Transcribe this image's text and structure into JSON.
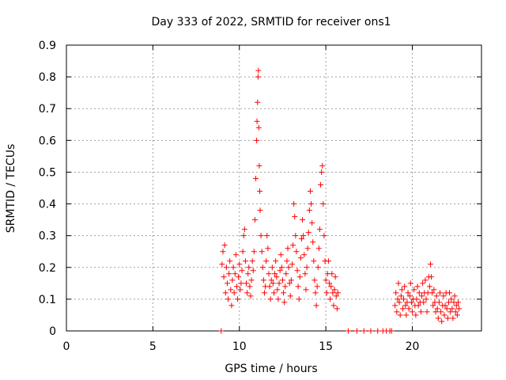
{
  "chart_data": {
    "type": "scatter",
    "title": "Day 333 of 2022, SRMTID for receiver ons1",
    "xlabel": "GPS time / hours",
    "ylabel": "SRMTID / TECUs",
    "xlim": [
      0,
      24
    ],
    "ylim": [
      0,
      0.9
    ],
    "x_ticks": [
      0,
      5,
      10,
      15,
      20
    ],
    "x_tick_labels": [
      "0",
      "5",
      "10",
      "15",
      "20"
    ],
    "y_ticks": [
      0,
      0.1,
      0.2,
      0.3,
      0.4,
      0.5,
      0.6,
      0.7,
      0.8,
      0.9
    ],
    "y_tick_labels": [
      "0",
      "0.1",
      "0.2",
      "0.3",
      "0.4",
      "0.5",
      "0.6",
      "0.7",
      "0.8",
      "0.9"
    ],
    "grid": true,
    "marker": "+",
    "color": "#ff0000",
    "series": [
      {
        "name": "SRMTID",
        "points": [
          [
            8.95,
            0.0
          ],
          [
            9.0,
            0.21
          ],
          [
            9.05,
            0.25
          ],
          [
            9.1,
            0.17
          ],
          [
            9.15,
            0.27
          ],
          [
            9.2,
            0.12
          ],
          [
            9.25,
            0.2
          ],
          [
            9.3,
            0.15
          ],
          [
            9.35,
            0.1
          ],
          [
            9.4,
            0.18
          ],
          [
            9.45,
            0.22
          ],
          [
            9.5,
            0.13
          ],
          [
            9.55,
            0.08
          ],
          [
            9.6,
            0.16
          ],
          [
            9.65,
            0.2
          ],
          [
            9.7,
            0.12
          ],
          [
            9.75,
            0.18
          ],
          [
            9.8,
            0.24
          ],
          [
            9.85,
            0.14
          ],
          [
            9.9,
            0.1
          ],
          [
            9.95,
            0.17
          ],
          [
            10.0,
            0.21
          ],
          [
            10.05,
            0.13
          ],
          [
            10.1,
            0.15
          ],
          [
            10.15,
            0.19
          ],
          [
            10.2,
            0.25
          ],
          [
            10.25,
            0.3
          ],
          [
            10.3,
            0.32
          ],
          [
            10.35,
            0.22
          ],
          [
            10.4,
            0.15
          ],
          [
            10.45,
            0.12
          ],
          [
            10.5,
            0.18
          ],
          [
            10.55,
            0.2
          ],
          [
            10.6,
            0.14
          ],
          [
            10.65,
            0.11
          ],
          [
            10.7,
            0.16
          ],
          [
            10.75,
            0.22
          ],
          [
            10.8,
            0.19
          ],
          [
            10.85,
            0.25
          ],
          [
            10.9,
            0.35
          ],
          [
            10.95,
            0.48
          ],
          [
            11.0,
            0.6
          ],
          [
            11.02,
            0.66
          ],
          [
            11.05,
            0.72
          ],
          [
            11.08,
            0.8
          ],
          [
            11.1,
            0.82
          ],
          [
            11.12,
            0.64
          ],
          [
            11.15,
            0.52
          ],
          [
            11.18,
            0.44
          ],
          [
            11.2,
            0.38
          ],
          [
            11.25,
            0.3
          ],
          [
            11.3,
            0.25
          ],
          [
            11.35,
            0.2
          ],
          [
            11.4,
            0.16
          ],
          [
            11.45,
            0.12
          ],
          [
            11.5,
            0.14
          ],
          [
            11.55,
            0.22
          ],
          [
            11.6,
            0.3
          ],
          [
            11.65,
            0.26
          ],
          [
            11.7,
            0.18
          ],
          [
            11.75,
            0.14
          ],
          [
            11.8,
            0.1
          ],
          [
            11.85,
            0.16
          ],
          [
            11.9,
            0.2
          ],
          [
            11.95,
            0.15
          ],
          [
            12.0,
            0.12
          ],
          [
            12.05,
            0.18
          ],
          [
            12.1,
            0.22
          ],
          [
            12.15,
            0.17
          ],
          [
            12.2,
            0.13
          ],
          [
            12.25,
            0.1
          ],
          [
            12.3,
            0.15
          ],
          [
            12.35,
            0.19
          ],
          [
            12.4,
            0.24
          ],
          [
            12.45,
            0.2
          ],
          [
            12.5,
            0.16
          ],
          [
            12.55,
            0.12
          ],
          [
            12.6,
            0.09
          ],
          [
            12.65,
            0.14
          ],
          [
            12.7,
            0.18
          ],
          [
            12.75,
            0.22
          ],
          [
            12.8,
            0.26
          ],
          [
            12.85,
            0.2
          ],
          [
            12.9,
            0.15
          ],
          [
            12.95,
            0.11
          ],
          [
            13.0,
            0.16
          ],
          [
            13.05,
            0.21
          ],
          [
            13.1,
            0.27
          ],
          [
            13.15,
            0.4
          ],
          [
            13.2,
            0.36
          ],
          [
            13.25,
            0.3
          ],
          [
            13.3,
            0.25
          ],
          [
            13.35,
            0.19
          ],
          [
            13.4,
            0.14
          ],
          [
            13.45,
            0.1
          ],
          [
            13.5,
            0.17
          ],
          [
            13.55,
            0.23
          ],
          [
            13.6,
            0.29
          ],
          [
            13.65,
            0.35
          ],
          [
            13.7,
            0.3
          ],
          [
            13.75,
            0.24
          ],
          [
            13.8,
            0.18
          ],
          [
            13.85,
            0.13
          ],
          [
            13.9,
            0.2
          ],
          [
            13.95,
            0.26
          ],
          [
            14.0,
            0.31
          ],
          [
            14.05,
            0.38
          ],
          [
            14.1,
            0.44
          ],
          [
            14.15,
            0.4
          ],
          [
            14.2,
            0.34
          ],
          [
            14.25,
            0.28
          ],
          [
            14.3,
            0.22
          ],
          [
            14.35,
            0.16
          ],
          [
            14.4,
            0.12
          ],
          [
            14.45,
            0.08
          ],
          [
            14.5,
            0.14
          ],
          [
            14.55,
            0.2
          ],
          [
            14.6,
            0.26
          ],
          [
            14.65,
            0.32
          ],
          [
            14.7,
            0.46
          ],
          [
            14.75,
            0.5
          ],
          [
            14.8,
            0.52
          ],
          [
            14.85,
            0.4
          ],
          [
            14.9,
            0.3
          ],
          [
            14.95,
            0.22
          ],
          [
            15.0,
            0.16
          ],
          [
            15.05,
            0.12
          ],
          [
            15.1,
            0.18
          ],
          [
            15.15,
            0.22
          ],
          [
            15.2,
            0.15
          ],
          [
            15.25,
            0.1
          ],
          [
            15.3,
            0.14
          ],
          [
            15.35,
            0.18
          ],
          [
            15.4,
            0.12
          ],
          [
            15.45,
            0.08
          ],
          [
            15.5,
            0.13
          ],
          [
            15.55,
            0.17
          ],
          [
            15.6,
            0.11
          ],
          [
            15.65,
            0.07
          ],
          [
            15.7,
            0.12
          ],
          [
            16.3,
            0.0
          ],
          [
            16.8,
            0.0
          ],
          [
            17.2,
            0.0
          ],
          [
            17.6,
            0.0
          ],
          [
            18.0,
            0.0
          ],
          [
            18.3,
            0.0
          ],
          [
            18.5,
            0.0
          ],
          [
            18.7,
            0.0
          ],
          [
            18.8,
            0.0
          ],
          [
            19.0,
            0.08
          ],
          [
            19.05,
            0.12
          ],
          [
            19.1,
            0.06
          ],
          [
            19.15,
            0.1
          ],
          [
            19.2,
            0.15
          ],
          [
            19.25,
            0.09
          ],
          [
            19.3,
            0.05
          ],
          [
            19.35,
            0.11
          ],
          [
            19.4,
            0.13
          ],
          [
            19.45,
            0.07
          ],
          [
            19.5,
            0.1
          ],
          [
            19.55,
            0.14
          ],
          [
            19.6,
            0.08
          ],
          [
            19.65,
            0.05
          ],
          [
            19.7,
            0.09
          ],
          [
            19.75,
            0.12
          ],
          [
            19.8,
            0.07
          ],
          [
            19.85,
            0.11
          ],
          [
            19.9,
            0.15
          ],
          [
            19.95,
            0.09
          ],
          [
            20.0,
            0.06
          ],
          [
            20.05,
            0.1
          ],
          [
            20.1,
            0.13
          ],
          [
            20.15,
            0.08
          ],
          [
            20.2,
            0.05
          ],
          [
            20.25,
            0.1
          ],
          [
            20.3,
            0.14
          ],
          [
            20.35,
            0.08
          ],
          [
            20.4,
            0.12
          ],
          [
            20.45,
            0.09
          ],
          [
            20.5,
            0.06
          ],
          [
            20.55,
            0.11
          ],
          [
            20.6,
            0.15
          ],
          [
            20.65,
            0.09
          ],
          [
            20.7,
            0.12
          ],
          [
            20.75,
            0.16
          ],
          [
            20.8,
            0.1
          ],
          [
            20.85,
            0.06
          ],
          [
            20.9,
            0.12
          ],
          [
            20.95,
            0.17
          ],
          [
            21.0,
            0.14
          ],
          [
            21.05,
            0.21
          ],
          [
            21.1,
            0.17
          ],
          [
            21.15,
            0.12
          ],
          [
            21.2,
            0.08
          ],
          [
            21.25,
            0.13
          ],
          [
            21.3,
            0.09
          ],
          [
            21.35,
            0.06
          ],
          [
            21.4,
            0.11
          ],
          [
            21.45,
            0.07
          ],
          [
            21.5,
            0.04
          ],
          [
            21.55,
            0.09
          ],
          [
            21.6,
            0.12
          ],
          [
            21.65,
            0.06
          ],
          [
            21.7,
            0.03
          ],
          [
            21.75,
            0.08
          ],
          [
            21.8,
            0.11
          ],
          [
            21.85,
            0.05
          ],
          [
            21.9,
            0.08
          ],
          [
            21.95,
            0.12
          ],
          [
            22.0,
            0.07
          ],
          [
            22.05,
            0.04
          ],
          [
            22.1,
            0.09
          ],
          [
            22.15,
            0.12
          ],
          [
            22.2,
            0.06
          ],
          [
            22.25,
            0.1
          ],
          [
            22.3,
            0.07
          ],
          [
            22.35,
            0.04
          ],
          [
            22.4,
            0.09
          ],
          [
            22.45,
            0.11
          ],
          [
            22.5,
            0.06
          ],
          [
            22.55,
            0.08
          ],
          [
            22.6,
            0.05
          ],
          [
            22.65,
            0.09
          ],
          [
            22.7,
            0.07
          ]
        ]
      }
    ]
  }
}
